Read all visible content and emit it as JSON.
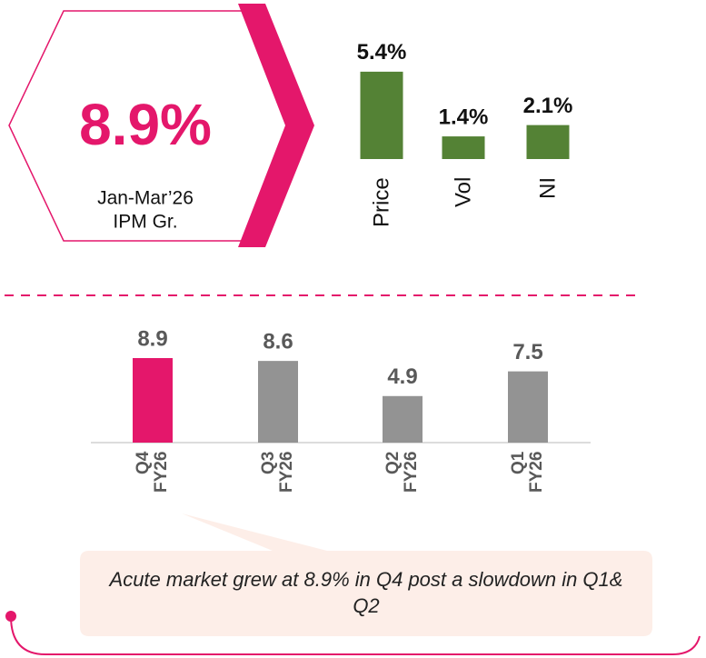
{
  "kpi": {
    "value": "8.9%",
    "period": "Jan-Mar’26",
    "label": "IPM Gr."
  },
  "chart_data": [
    {
      "type": "bar",
      "categories": [
        "Price",
        "Vol",
        "NI"
      ],
      "values": [
        5.4,
        1.4,
        2.1
      ],
      "value_labels": [
        "5.4%",
        "1.4%",
        "2.1%"
      ],
      "color": "#548235"
    },
    {
      "type": "bar",
      "categories": [
        "Q4 FY26",
        "Q3 FY26",
        "Q2 FY26",
        "Q1 FY26"
      ],
      "values": [
        8.9,
        8.6,
        4.9,
        7.5
      ],
      "colors": [
        "#e4176b",
        "#939393",
        "#939393",
        "#939393"
      ]
    }
  ],
  "note": "Acute market grew at 8.9% in Q4 post a slowdown in Q1& Q2"
}
